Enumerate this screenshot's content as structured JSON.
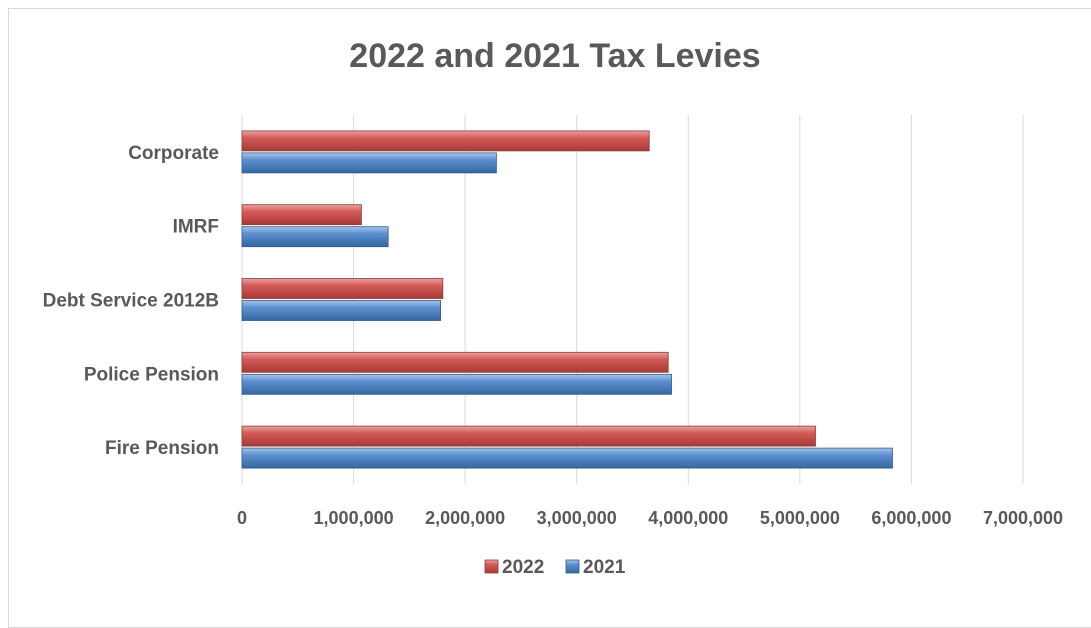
{
  "chart_data": {
    "type": "bar",
    "orientation": "horizontal",
    "title": "2022 and 2021 Tax Levies",
    "xlabel": "",
    "ylabel": "",
    "categories": [
      "Corporate",
      "IMRF",
      "Debt Service 2012B",
      "Police Pension",
      "Fire Pension"
    ],
    "series": [
      {
        "name": "2022",
        "color": "#c0504d",
        "values": [
          3650000,
          1070000,
          1800000,
          3820000,
          5140000
        ]
      },
      {
        "name": "2021",
        "color": "#4f81bd",
        "values": [
          2280000,
          1310000,
          1780000,
          3850000,
          5830000
        ]
      }
    ],
    "xlim": [
      0,
      7000000
    ],
    "xticks": [
      "0",
      "1,000,000",
      "2,000,000",
      "3,000,000",
      "4,000,000",
      "5,000,000",
      "6,000,000",
      "7,000,000"
    ],
    "grid": true,
    "legend_position": "bottom"
  }
}
